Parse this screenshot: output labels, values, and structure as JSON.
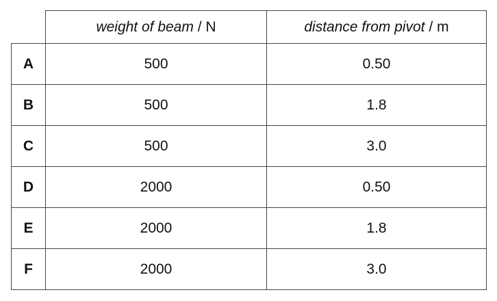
{
  "table": {
    "header": [
      {
        "quantity": "weight of beam",
        "unit": "/ N"
      },
      {
        "quantity": "distance from pivot",
        "unit": "/ m"
      }
    ],
    "rows": [
      [
        "A",
        "500",
        "0.50"
      ],
      [
        "B",
        "500",
        "1.8"
      ],
      [
        "C",
        "500",
        "3.0"
      ],
      [
        "D",
        "2000",
        "0.50"
      ],
      [
        "E",
        "2000",
        "1.8"
      ],
      [
        "F",
        "2000",
        "3.0"
      ]
    ]
  }
}
